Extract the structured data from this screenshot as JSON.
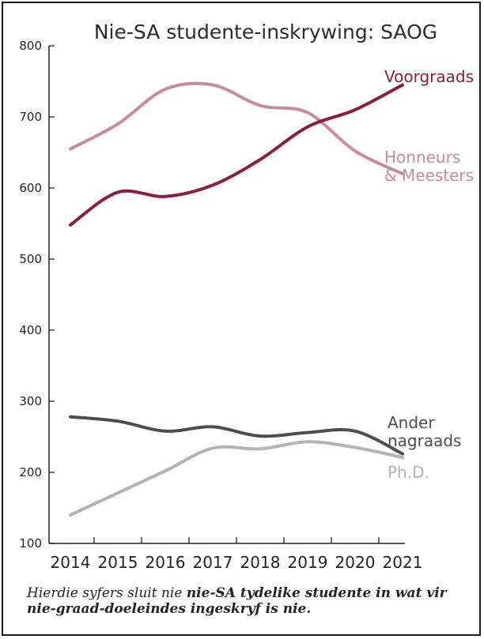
{
  "chart_data": {
    "type": "line",
    "title": "Nie-SA studente-inskrywing: SAOG",
    "x": [
      "2014",
      "2015",
      "2016",
      "2017",
      "2018",
      "2019",
      "2020",
      "2021"
    ],
    "ylim": [
      100,
      800
    ],
    "yticks": [
      "100",
      "200",
      "300",
      "400",
      "500",
      "600",
      "700",
      "800"
    ],
    "grid": false,
    "series": [
      {
        "name": "Voorgraads",
        "color": "#8b1c44",
        "values": [
          548,
          594,
          588,
          604,
          640,
          686,
          710,
          745
        ]
      },
      {
        "name": "Honneurs & Meesters",
        "name_lines": [
          "Honneurs",
          "& Meesters"
        ],
        "color": "#c98aa0",
        "values": [
          655,
          690,
          739,
          745,
          716,
          706,
          652,
          620
        ]
      },
      {
        "name": "Ander nagraads",
        "name_lines": [
          "Ander",
          "nagraads"
        ],
        "color": "#4d4d4d",
        "values": [
          278,
          272,
          258,
          264,
          251,
          256,
          258,
          226
        ]
      },
      {
        "name": "Ph.D.",
        "color": "#b3b3b3",
        "values": [
          140,
          171,
          202,
          234,
          233,
          243,
          235,
          221
        ]
      }
    ]
  },
  "footnote": {
    "italic": "Hierdie syfers sluit nie ",
    "bold": "nie-SA tydelike studente in wat vir nie-graad-doeleindes ingeskryf is nie."
  }
}
